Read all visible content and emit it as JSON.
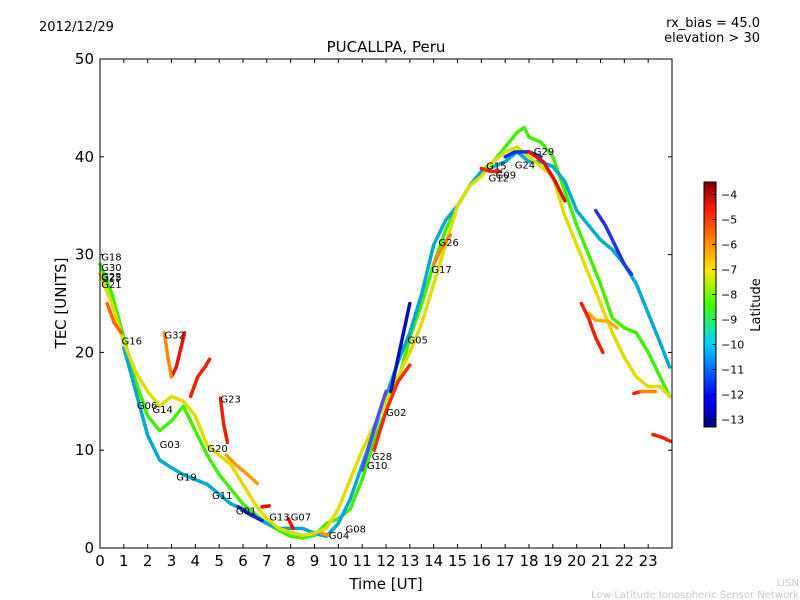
{
  "header": {
    "date": "2012/12/29",
    "rx_bias": "rx_bias = 45.0",
    "elevation": "elevation > 30"
  },
  "credits": {
    "line1": "LISN",
    "line2": "Low-Latitude Ionospheric Sensor Network"
  },
  "chart_data": {
    "type": "scatter",
    "title": "PUCALLPA, Peru",
    "xlabel": "Time [UT]",
    "ylabel": "TEC [UNITS]",
    "xlim": [
      0,
      24
    ],
    "ylim": [
      0,
      50
    ],
    "xticks": [
      0,
      1,
      2,
      3,
      4,
      5,
      6,
      7,
      8,
      9,
      10,
      11,
      12,
      13,
      14,
      15,
      16,
      17,
      18,
      19,
      20,
      21,
      22,
      23
    ],
    "yticks": [
      0,
      10,
      20,
      30,
      40,
      50
    ],
    "grid": false,
    "colorbar": {
      "label": "Latitude",
      "range": [
        -13.3,
        -3.5
      ],
      "ticks": [
        -4,
        -5,
        -6,
        -7,
        -8,
        -9,
        -10,
        -11,
        -12,
        -13
      ]
    },
    "series": [
      {
        "name": "main-green",
        "color": "#44ee00",
        "points": [
          [
            0,
            29
          ],
          [
            0.5,
            26
          ],
          [
            1,
            21.5
          ],
          [
            1.5,
            17
          ],
          [
            2,
            13.5
          ],
          [
            2.5,
            12
          ],
          [
            3,
            13
          ],
          [
            3.5,
            14.5
          ],
          [
            4,
            12
          ],
          [
            4.5,
            9.5
          ],
          [
            5,
            7.5
          ],
          [
            5.5,
            6
          ],
          [
            6,
            4.5
          ],
          [
            6.5,
            3.5
          ],
          [
            7,
            2.5
          ],
          [
            7.5,
            1.8
          ],
          [
            8,
            1.2
          ],
          [
            8.5,
            1
          ],
          [
            9,
            1.3
          ],
          [
            9.5,
            2.5
          ],
          [
            10,
            3
          ],
          [
            10.5,
            4
          ],
          [
            11,
            7
          ],
          [
            11.5,
            11
          ],
          [
            12,
            14
          ],
          [
            12.5,
            17
          ],
          [
            13,
            21.5
          ],
          [
            13.5,
            25
          ],
          [
            14,
            29
          ],
          [
            14.5,
            32.5
          ],
          [
            15,
            35
          ],
          [
            15.5,
            37
          ],
          [
            16,
            38.5
          ],
          [
            16.5,
            39.5
          ],
          [
            17,
            41
          ],
          [
            17.5,
            42.5
          ],
          [
            17.8,
            43
          ],
          [
            18,
            42
          ],
          [
            18.5,
            41.5
          ],
          [
            19,
            40
          ],
          [
            19.5,
            36.5
          ],
          [
            20,
            33
          ],
          [
            20.5,
            30
          ],
          [
            21,
            27
          ],
          [
            21.5,
            23.5
          ],
          [
            22,
            22.5
          ],
          [
            22.5,
            22
          ],
          [
            23,
            20
          ],
          [
            23.5,
            17.5
          ],
          [
            23.9,
            15.5
          ]
        ]
      },
      {
        "name": "main-cyan",
        "color": "#00aacc",
        "points": [
          [
            1,
            20.5
          ],
          [
            1.5,
            16
          ],
          [
            2,
            11.5
          ],
          [
            2.5,
            9
          ],
          [
            3,
            8.2
          ],
          [
            3.5,
            7.5
          ],
          [
            4,
            7
          ],
          [
            4.5,
            6.5
          ],
          [
            5,
            5.5
          ],
          [
            5.5,
            4.5
          ],
          [
            6,
            4
          ],
          [
            6.5,
            3.2
          ],
          [
            7,
            2.5
          ],
          [
            7.5,
            2
          ],
          [
            8,
            2
          ],
          [
            8.5,
            2
          ],
          [
            9,
            1.5
          ],
          [
            9.5,
            1.2
          ],
          [
            10,
            2.5
          ],
          [
            10.5,
            5
          ],
          [
            11,
            8.5
          ],
          [
            11.5,
            12
          ],
          [
            12,
            15.5
          ],
          [
            12.5,
            19
          ],
          [
            13,
            22
          ],
          [
            13.5,
            26
          ],
          [
            14,
            31
          ],
          [
            14.5,
            33.5
          ],
          [
            15,
            35
          ],
          [
            15.5,
            37
          ],
          [
            16,
            38.5
          ],
          [
            16.5,
            39
          ],
          [
            17,
            39.5
          ],
          [
            17.5,
            40.5
          ],
          [
            18,
            39.5
          ],
          [
            18.5,
            39.5
          ],
          [
            19,
            39
          ],
          [
            19.5,
            37.5
          ],
          [
            20,
            34.5
          ],
          [
            20.5,
            33
          ],
          [
            21,
            31.5
          ],
          [
            21.5,
            30.5
          ],
          [
            22,
            29
          ],
          [
            22.5,
            27
          ],
          [
            23,
            24
          ],
          [
            23.5,
            21
          ],
          [
            23.9,
            18.5
          ]
        ]
      },
      {
        "name": "main-yellow",
        "color": "#dddd00",
        "points": [
          [
            0,
            28
          ],
          [
            0.5,
            25
          ],
          [
            1,
            21
          ],
          [
            1.5,
            18
          ],
          [
            2,
            16
          ],
          [
            2.5,
            14.5
          ],
          [
            3,
            15.5
          ],
          [
            3.5,
            15
          ],
          [
            4,
            13.5
          ],
          [
            4.5,
            10.5
          ],
          [
            5,
            9.5
          ],
          [
            5.5,
            8.5
          ],
          [
            6,
            6.5
          ],
          [
            6.5,
            4.5
          ],
          [
            7,
            3
          ],
          [
            7.5,
            2
          ],
          [
            8,
            1.6
          ],
          [
            8.5,
            1.3
          ],
          [
            9,
            1.5
          ],
          [
            9.5,
            2
          ],
          [
            10,
            4
          ],
          [
            10.5,
            7
          ],
          [
            11,
            10
          ],
          [
            11.5,
            12.5
          ],
          [
            12,
            15
          ],
          [
            12.5,
            17.5
          ],
          [
            13,
            20
          ],
          [
            13.5,
            23
          ],
          [
            14,
            27
          ],
          [
            14.5,
            31
          ],
          [
            15,
            35
          ],
          [
            15.5,
            37
          ],
          [
            16,
            38
          ],
          [
            16.5,
            39.5
          ],
          [
            17,
            40.5
          ],
          [
            17.5,
            41
          ],
          [
            18,
            40
          ],
          [
            18.5,
            39
          ],
          [
            19,
            38
          ],
          [
            19.5,
            34
          ],
          [
            20,
            31
          ],
          [
            20.5,
            28
          ],
          [
            21,
            25
          ],
          [
            21.5,
            22
          ],
          [
            22,
            19.5
          ],
          [
            22.5,
            17.5
          ],
          [
            23,
            16.5
          ],
          [
            23.5,
            16.5
          ],
          [
            23.9,
            15.5
          ]
        ]
      },
      {
        "name": "arc-g16",
        "color": "#ff6600",
        "points": [
          [
            0.3,
            25
          ],
          [
            0.6,
            23
          ],
          [
            0.9,
            22
          ]
        ]
      },
      {
        "name": "arc-g32",
        "color": "#ee1100",
        "points": [
          [
            3.0,
            17.5
          ],
          [
            3.2,
            18.5
          ],
          [
            3.4,
            20.5
          ],
          [
            3.55,
            22
          ]
        ]
      },
      {
        "name": "arc-g32b",
        "color": "#ff8800",
        "points": [
          [
            2.7,
            22
          ],
          [
            2.85,
            19.5
          ],
          [
            3.0,
            17.5
          ]
        ]
      },
      {
        "name": "arc-a",
        "color": "#ee2200",
        "points": [
          [
            3.8,
            15.5
          ],
          [
            4.1,
            17.5
          ],
          [
            4.4,
            18.5
          ],
          [
            4.6,
            19.3
          ]
        ]
      },
      {
        "name": "arc-g23",
        "color": "#ee2200",
        "points": [
          [
            5.05,
            15.3
          ],
          [
            5.2,
            12.5
          ],
          [
            5.35,
            10.8
          ]
        ]
      },
      {
        "name": "arc-g20",
        "color": "#ff9900",
        "points": [
          [
            5.3,
            9.5
          ],
          [
            5.7,
            8.5
          ],
          [
            6.2,
            7.5
          ],
          [
            6.6,
            6.6
          ]
        ]
      },
      {
        "name": "arc-dark",
        "color": "#1122cc",
        "points": [
          [
            5.8,
            4.2
          ],
          [
            6.3,
            3.4
          ],
          [
            6.8,
            2.8
          ]
        ]
      },
      {
        "name": "arc-g13",
        "color": "#dd1100",
        "points": [
          [
            6.8,
            4.2
          ],
          [
            7.1,
            4.3
          ]
        ]
      },
      {
        "name": "arc-g07",
        "color": "#ee1100",
        "points": [
          [
            7.9,
            3
          ],
          [
            8.1,
            2
          ]
        ]
      },
      {
        "name": "arc-g04",
        "color": "#ff9900",
        "points": [
          [
            9.3,
            1.5
          ],
          [
            9.6,
            1.3
          ]
        ]
      },
      {
        "name": "arc-g05",
        "color": "#0011bb",
        "points": [
          [
            12.2,
            16
          ],
          [
            12.6,
            20.5
          ],
          [
            13,
            25
          ]
        ]
      },
      {
        "name": "arc-g02",
        "color": "#ee3300",
        "points": [
          [
            11.5,
            10
          ],
          [
            12,
            14
          ],
          [
            12.5,
            17
          ],
          [
            13,
            18.7
          ]
        ]
      },
      {
        "name": "arc-g28",
        "color": "#4455ee",
        "points": [
          [
            11,
            8
          ],
          [
            11.3,
            10.5
          ],
          [
            11.6,
            13
          ],
          [
            12,
            16
          ]
        ]
      },
      {
        "name": "arc-g26",
        "color": "#ff8800",
        "points": [
          [
            14,
            29
          ],
          [
            14.3,
            30.5
          ],
          [
            14.7,
            32
          ]
        ]
      },
      {
        "name": "arc-g15",
        "color": "#ee2200",
        "points": [
          [
            16,
            38.8
          ],
          [
            16.4,
            38.5
          ],
          [
            16.8,
            38.5
          ]
        ]
      },
      {
        "name": "arc-g24",
        "color": "#1133dd",
        "points": [
          [
            17,
            40
          ],
          [
            17.4,
            40.5
          ],
          [
            18,
            40.5
          ],
          [
            18.5,
            40
          ]
        ]
      },
      {
        "name": "arc-g29",
        "color": "#dd1100",
        "points": [
          [
            18,
            40.5
          ],
          [
            18.6,
            39.5
          ],
          [
            19.1,
            37.5
          ],
          [
            19.5,
            35.5
          ]
        ]
      },
      {
        "name": "arc-right-blue",
        "color": "#2233dd",
        "points": [
          [
            20.8,
            34.5
          ],
          [
            21.2,
            33
          ],
          [
            21.6,
            31
          ],
          [
            22,
            29
          ],
          [
            22.3,
            28
          ]
        ]
      },
      {
        "name": "arc-right-orange",
        "color": "#ffaa00",
        "points": [
          [
            20.5,
            24
          ],
          [
            20.8,
            23.3
          ],
          [
            21.3,
            23.2
          ],
          [
            21.7,
            22.5
          ]
        ]
      },
      {
        "name": "arc-right-red",
        "color": "#ee2200",
        "points": [
          [
            20.2,
            25
          ],
          [
            20.5,
            23.5
          ],
          [
            20.8,
            21.5
          ],
          [
            21.1,
            20
          ]
        ]
      },
      {
        "name": "arc-red-a",
        "color": "#ee2200",
        "points": [
          [
            22.4,
            15.8
          ],
          [
            22.7,
            16
          ]
        ]
      },
      {
        "name": "arc-orange-b",
        "color": "#ff8800",
        "points": [
          [
            22.7,
            16
          ],
          [
            23.3,
            16
          ]
        ]
      },
      {
        "name": "arc-red-b",
        "color": "#ee2200",
        "points": [
          [
            23.2,
            11.6
          ],
          [
            23.6,
            11.3
          ],
          [
            23.95,
            10.9
          ]
        ]
      }
    ],
    "prn_labels": [
      {
        "text": "G18",
        "x": 0.05,
        "y": 29.4
      },
      {
        "text": "G30",
        "x": 0.05,
        "y": 28.3
      },
      {
        "text": "G22",
        "x": 0.05,
        "y": 27.4
      },
      {
        "text": "G25",
        "x": 0.05,
        "y": 27.3
      },
      {
        "text": "G21",
        "x": 0.05,
        "y": 26.6
      },
      {
        "text": "G16",
        "x": 0.9,
        "y": 20.8
      },
      {
        "text": "G32",
        "x": 2.7,
        "y": 21.4
      },
      {
        "text": "G06",
        "x": 1.55,
        "y": 14.2
      },
      {
        "text": "G14",
        "x": 2.2,
        "y": 13.8
      },
      {
        "text": "G23",
        "x": 5.05,
        "y": 14.9
      },
      {
        "text": "G03",
        "x": 2.5,
        "y": 10.2
      },
      {
        "text": "G20",
        "x": 4.5,
        "y": 9.8
      },
      {
        "text": "G19",
        "x": 3.2,
        "y": 6.9
      },
      {
        "text": "G11",
        "x": 4.7,
        "y": 5.0
      },
      {
        "text": "G01",
        "x": 5.7,
        "y": 3.4
      },
      {
        "text": "G13",
        "x": 7.1,
        "y": 2.8
      },
      {
        "text": "G07",
        "x": 8.0,
        "y": 2.8
      },
      {
        "text": "G04",
        "x": 9.6,
        "y": 0.9
      },
      {
        "text": "G08",
        "x": 10.3,
        "y": 1.6
      },
      {
        "text": "G10",
        "x": 11.2,
        "y": 8.1
      },
      {
        "text": "G28",
        "x": 11.4,
        "y": 9.0
      },
      {
        "text": "G02",
        "x": 12.0,
        "y": 13.5
      },
      {
        "text": "G05",
        "x": 12.9,
        "y": 20.9
      },
      {
        "text": "G17",
        "x": 13.9,
        "y": 28.1
      },
      {
        "text": "G26",
        "x": 14.2,
        "y": 30.9
      },
      {
        "text": "G15",
        "x": 16.2,
        "y": 38.7
      },
      {
        "text": "G12",
        "x": 16.3,
        "y": 37.5
      },
      {
        "text": "G09",
        "x": 16.6,
        "y": 37.8
      },
      {
        "text": "G24",
        "x": 17.4,
        "y": 38.8
      },
      {
        "text": "G29",
        "x": 18.2,
        "y": 40.2
      }
    ]
  }
}
